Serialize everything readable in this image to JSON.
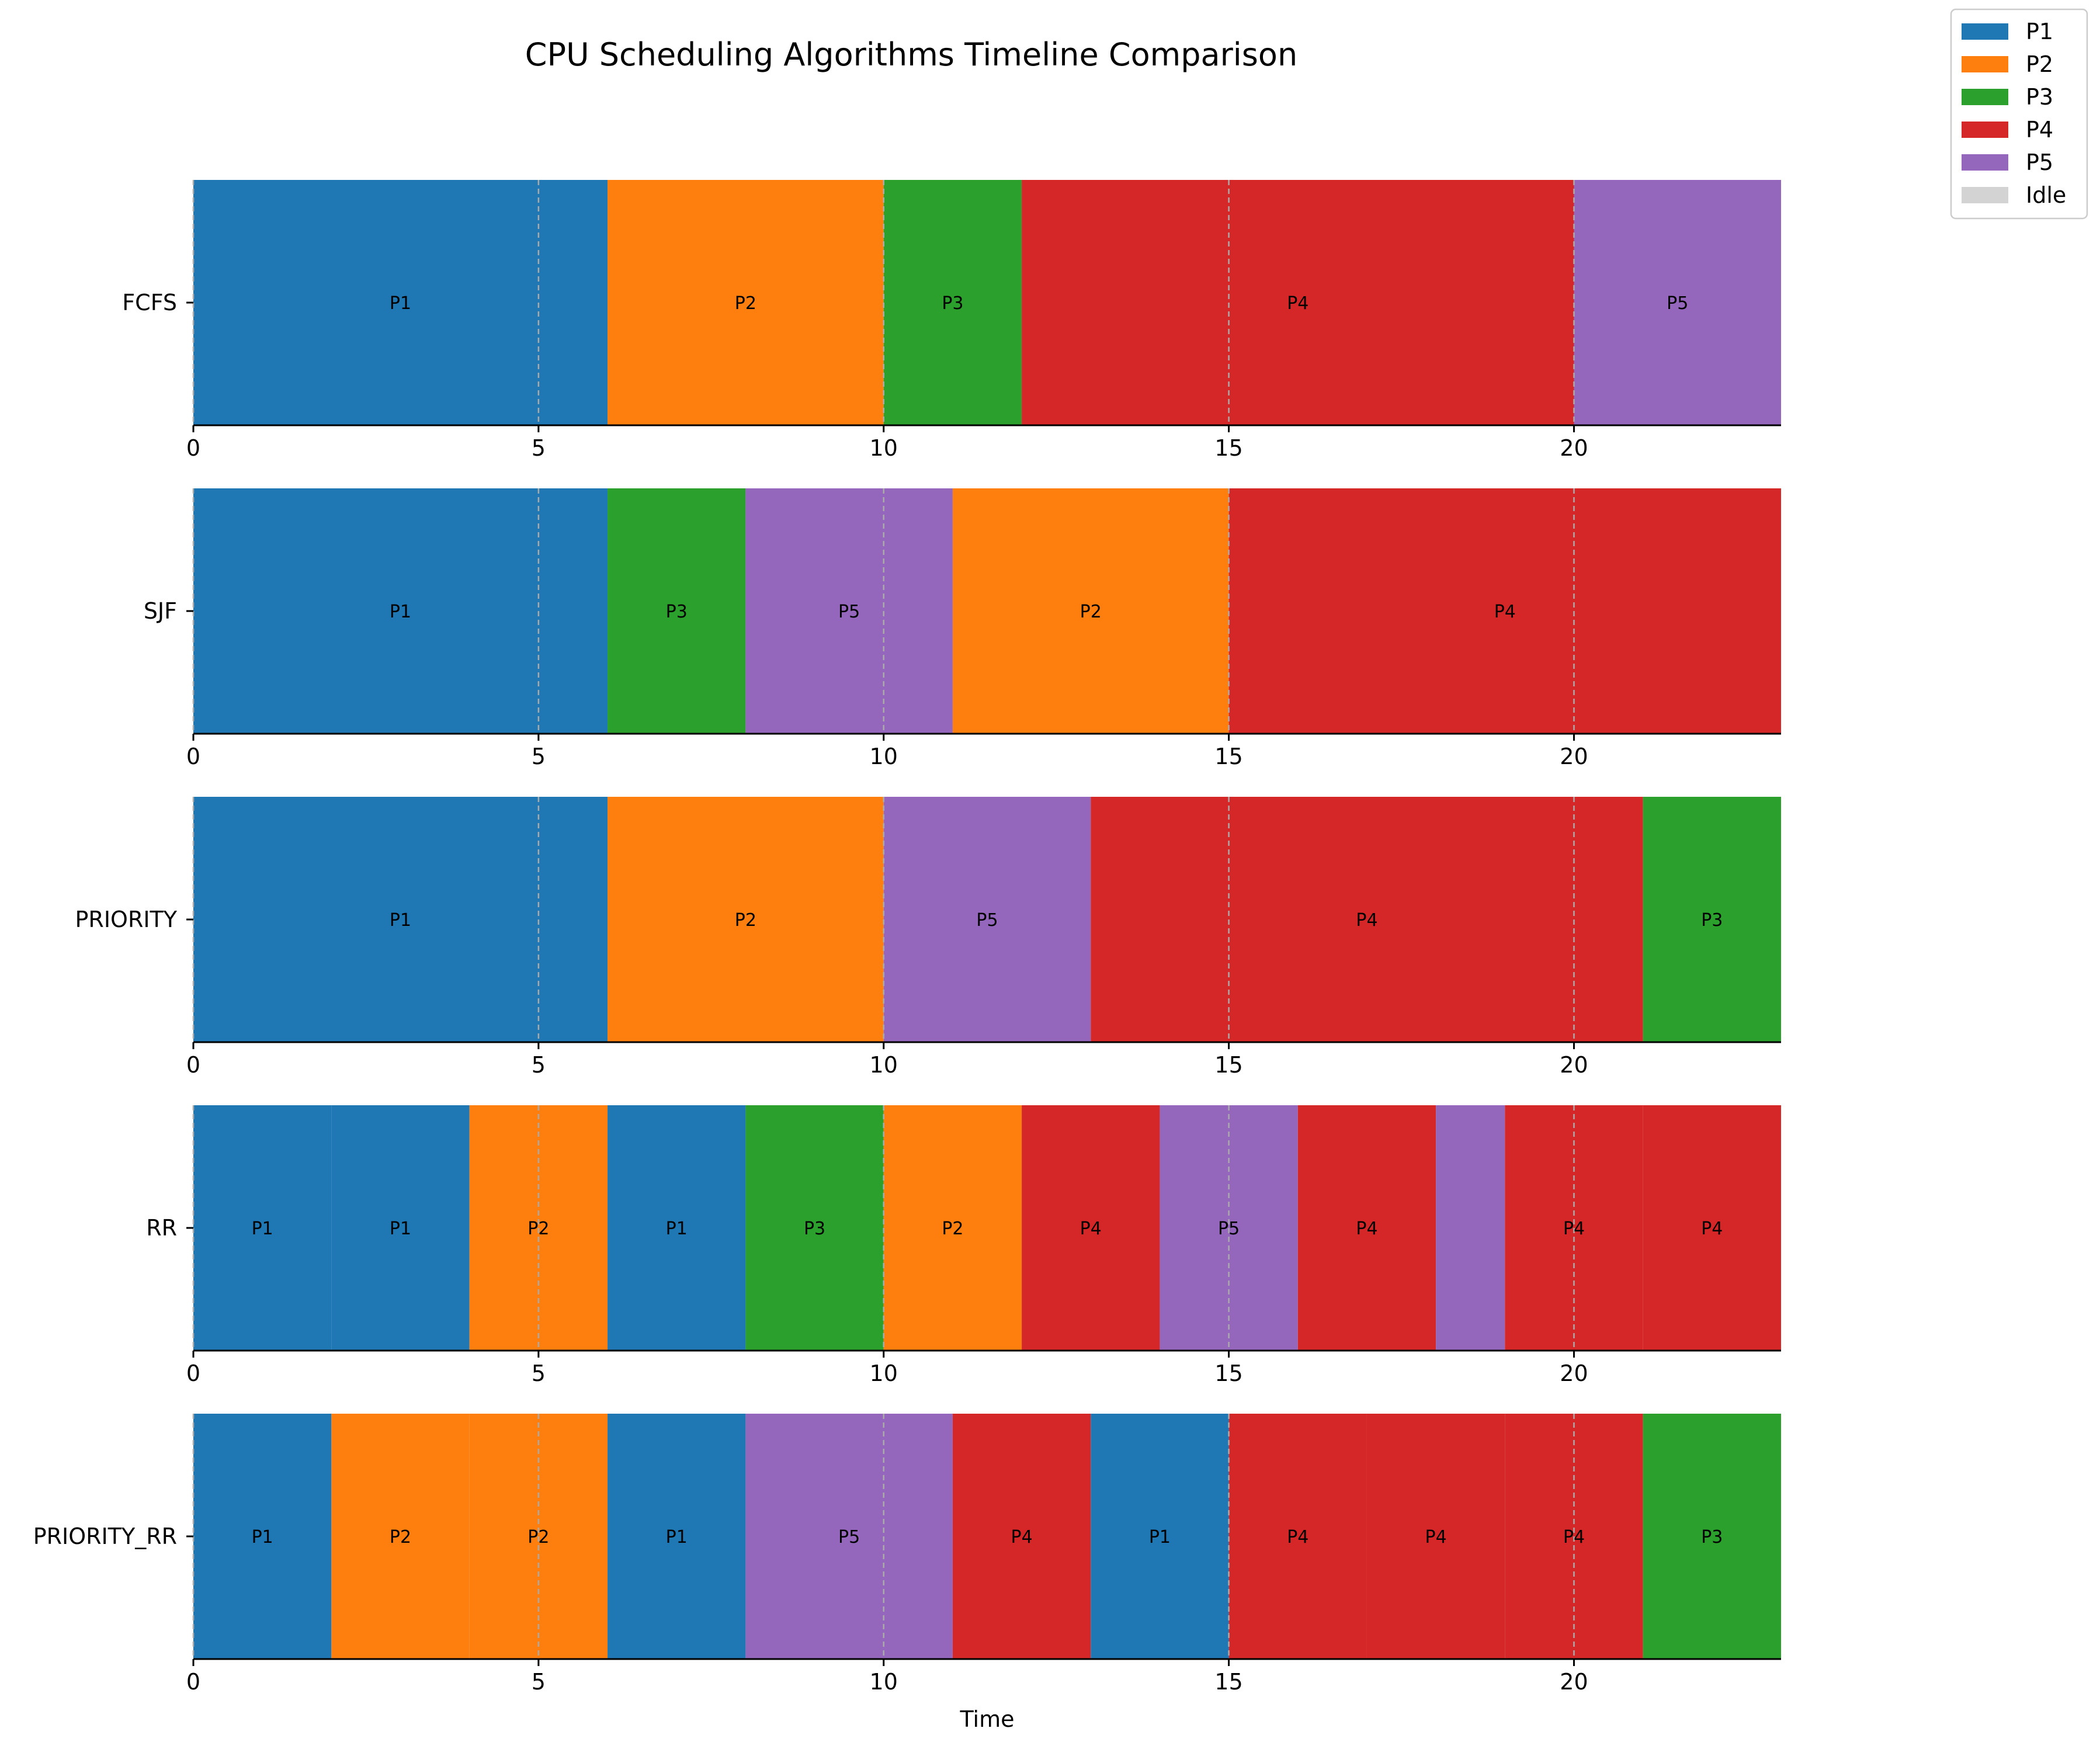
{
  "chart_data": {
    "type": "gantt",
    "title": "CPU Scheduling Algorithms Timeline Comparison",
    "xlabel": "Time",
    "xlim": [
      0,
      23
    ],
    "xticks": [
      0,
      5,
      10,
      15,
      20
    ],
    "grid": "dashed vertical lines at x ticks",
    "legend": {
      "placement": "top-right",
      "entries": [
        {
          "name": "P1",
          "color": "#1f77b4"
        },
        {
          "name": "P2",
          "color": "#ff7f0e"
        },
        {
          "name": "P3",
          "color": "#2ca02c"
        },
        {
          "name": "P4",
          "color": "#d62728"
        },
        {
          "name": "P5",
          "color": "#9467bd"
        },
        {
          "name": "Idle",
          "color": "#d3d3d3"
        }
      ]
    },
    "rows": [
      {
        "name": "FCFS",
        "segments": [
          {
            "process": "P1",
            "start": 0,
            "end": 6,
            "label": "P1"
          },
          {
            "process": "P2",
            "start": 6,
            "end": 10,
            "label": "P2"
          },
          {
            "process": "P3",
            "start": 10,
            "end": 12,
            "label": "P3"
          },
          {
            "process": "P4",
            "start": 12,
            "end": 20,
            "label": "P4"
          },
          {
            "process": "P5",
            "start": 20,
            "end": 23,
            "label": "P5"
          }
        ]
      },
      {
        "name": "SJF",
        "segments": [
          {
            "process": "P1",
            "start": 0,
            "end": 6,
            "label": "P1"
          },
          {
            "process": "P3",
            "start": 6,
            "end": 8,
            "label": "P3"
          },
          {
            "process": "P5",
            "start": 8,
            "end": 11,
            "label": "P5"
          },
          {
            "process": "P2",
            "start": 11,
            "end": 15,
            "label": "P2"
          },
          {
            "process": "P4",
            "start": 15,
            "end": 23,
            "label": "P4"
          }
        ]
      },
      {
        "name": "PRIORITY",
        "segments": [
          {
            "process": "P1",
            "start": 0,
            "end": 6,
            "label": "P1"
          },
          {
            "process": "P2",
            "start": 6,
            "end": 10,
            "label": "P2"
          },
          {
            "process": "P5",
            "start": 10,
            "end": 13,
            "label": "P5"
          },
          {
            "process": "P4",
            "start": 13,
            "end": 21,
            "label": "P4"
          },
          {
            "process": "P3",
            "start": 21,
            "end": 23,
            "label": "P3"
          }
        ]
      },
      {
        "name": "RR",
        "segments": [
          {
            "process": "P1",
            "start": 0,
            "end": 2,
            "label": "P1"
          },
          {
            "process": "P1",
            "start": 2,
            "end": 4,
            "label": "P1"
          },
          {
            "process": "P2",
            "start": 4,
            "end": 6,
            "label": "P2"
          },
          {
            "process": "P1",
            "start": 6,
            "end": 8,
            "label": "P1"
          },
          {
            "process": "P3",
            "start": 8,
            "end": 10,
            "label": "P3"
          },
          {
            "process": "P2",
            "start": 10,
            "end": 12,
            "label": "P2"
          },
          {
            "process": "P4",
            "start": 12,
            "end": 14,
            "label": "P4"
          },
          {
            "process": "P5",
            "start": 14,
            "end": 16,
            "label": "P5"
          },
          {
            "process": "P4",
            "start": 16,
            "end": 18,
            "label": "P4"
          },
          {
            "process": "P5",
            "start": 18,
            "end": 19,
            "label": ""
          },
          {
            "process": "P4",
            "start": 19,
            "end": 21,
            "label": "P4"
          },
          {
            "process": "P4",
            "start": 21,
            "end": 23,
            "label": "P4"
          }
        ]
      },
      {
        "name": "PRIORITY_RR",
        "segments": [
          {
            "process": "P1",
            "start": 0,
            "end": 2,
            "label": "P1"
          },
          {
            "process": "P2",
            "start": 2,
            "end": 4,
            "label": "P2"
          },
          {
            "process": "P2",
            "start": 4,
            "end": 6,
            "label": "P2"
          },
          {
            "process": "P1",
            "start": 6,
            "end": 8,
            "label": "P1"
          },
          {
            "process": "P5",
            "start": 8,
            "end": 11,
            "label": "P5"
          },
          {
            "process": "P4",
            "start": 11,
            "end": 13,
            "label": "P4"
          },
          {
            "process": "P1",
            "start": 13,
            "end": 15,
            "label": "P1"
          },
          {
            "process": "P4",
            "start": 15,
            "end": 17,
            "label": "P4"
          },
          {
            "process": "P4",
            "start": 17,
            "end": 19,
            "label": "P4"
          },
          {
            "process": "P4",
            "start": 19,
            "end": 21,
            "label": "P4"
          },
          {
            "process": "P3",
            "start": 21,
            "end": 23,
            "label": "P3"
          }
        ]
      }
    ]
  }
}
